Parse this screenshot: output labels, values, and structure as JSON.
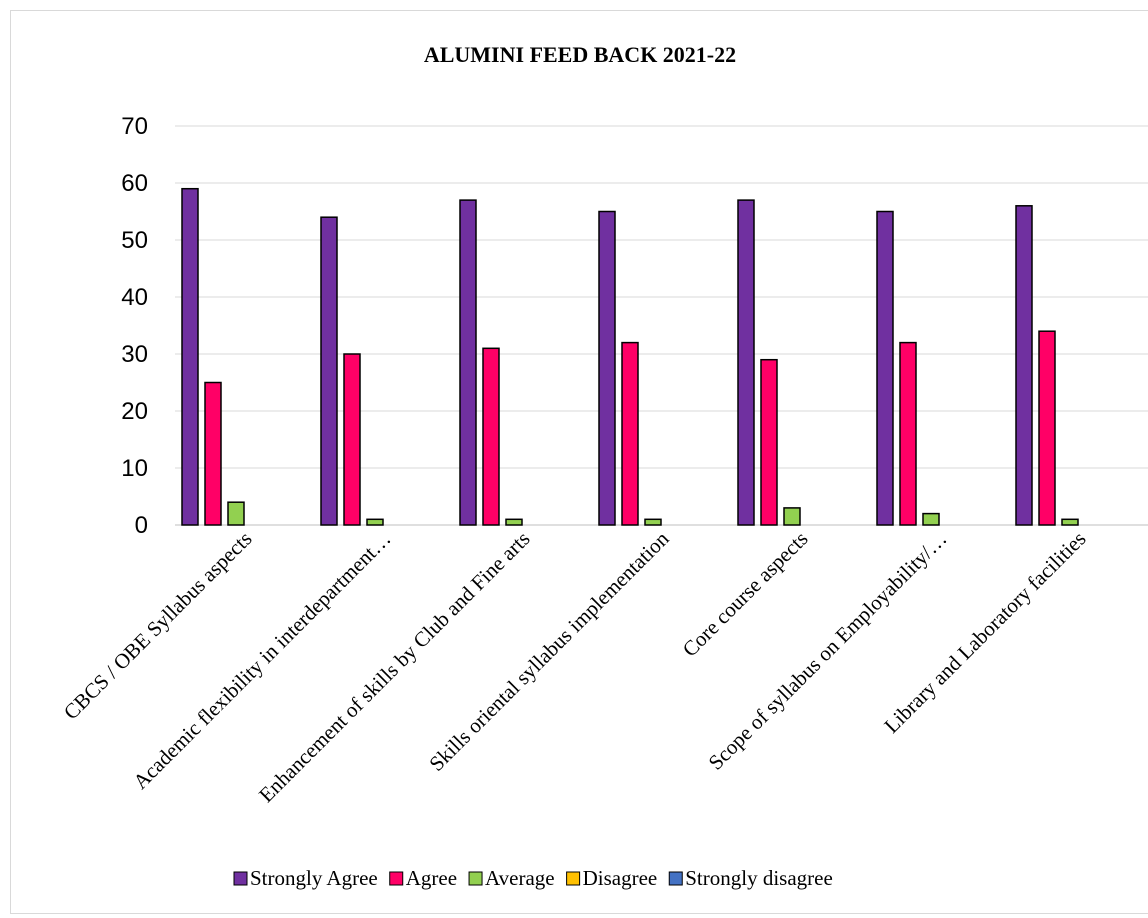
{
  "chart_data": {
    "type": "bar",
    "title": "ALUMINI FEED BACK 2021-22",
    "xlabel": "",
    "ylabel": "",
    "ylim": [
      0,
      70
    ],
    "yticks": [
      0,
      10,
      20,
      30,
      40,
      50,
      60,
      70
    ],
    "grid": true,
    "legend_position": "bottom",
    "categories": [
      "CBCS / OBE Syllabus aspects",
      "Academic flexibility in interdepartment…",
      "Enhancement of skills by Club and Fine arts",
      "Skills oriental syllabus implementation",
      "Core course aspects",
      "Scope of syllabus on Employability/…",
      "Library and Laboratory facilities"
    ],
    "series": [
      {
        "name": "Strongly Agree",
        "color": "#7030a0",
        "values": [
          59,
          54,
          57,
          55,
          57,
          55,
          56
        ]
      },
      {
        "name": "Agree",
        "color": "#ff0066",
        "values": [
          25,
          30,
          31,
          32,
          29,
          32,
          34
        ]
      },
      {
        "name": "Average",
        "color": "#92d050",
        "values": [
          4,
          1,
          1,
          1,
          3,
          2,
          1
        ]
      },
      {
        "name": "Disagree",
        "color": "#ffc000",
        "values": [
          0,
          0,
          0,
          0,
          0,
          0,
          0
        ]
      },
      {
        "name": "Strongly disagree",
        "color": "#4472c4",
        "values": [
          0,
          0,
          0,
          0,
          0,
          0,
          0
        ]
      }
    ]
  }
}
